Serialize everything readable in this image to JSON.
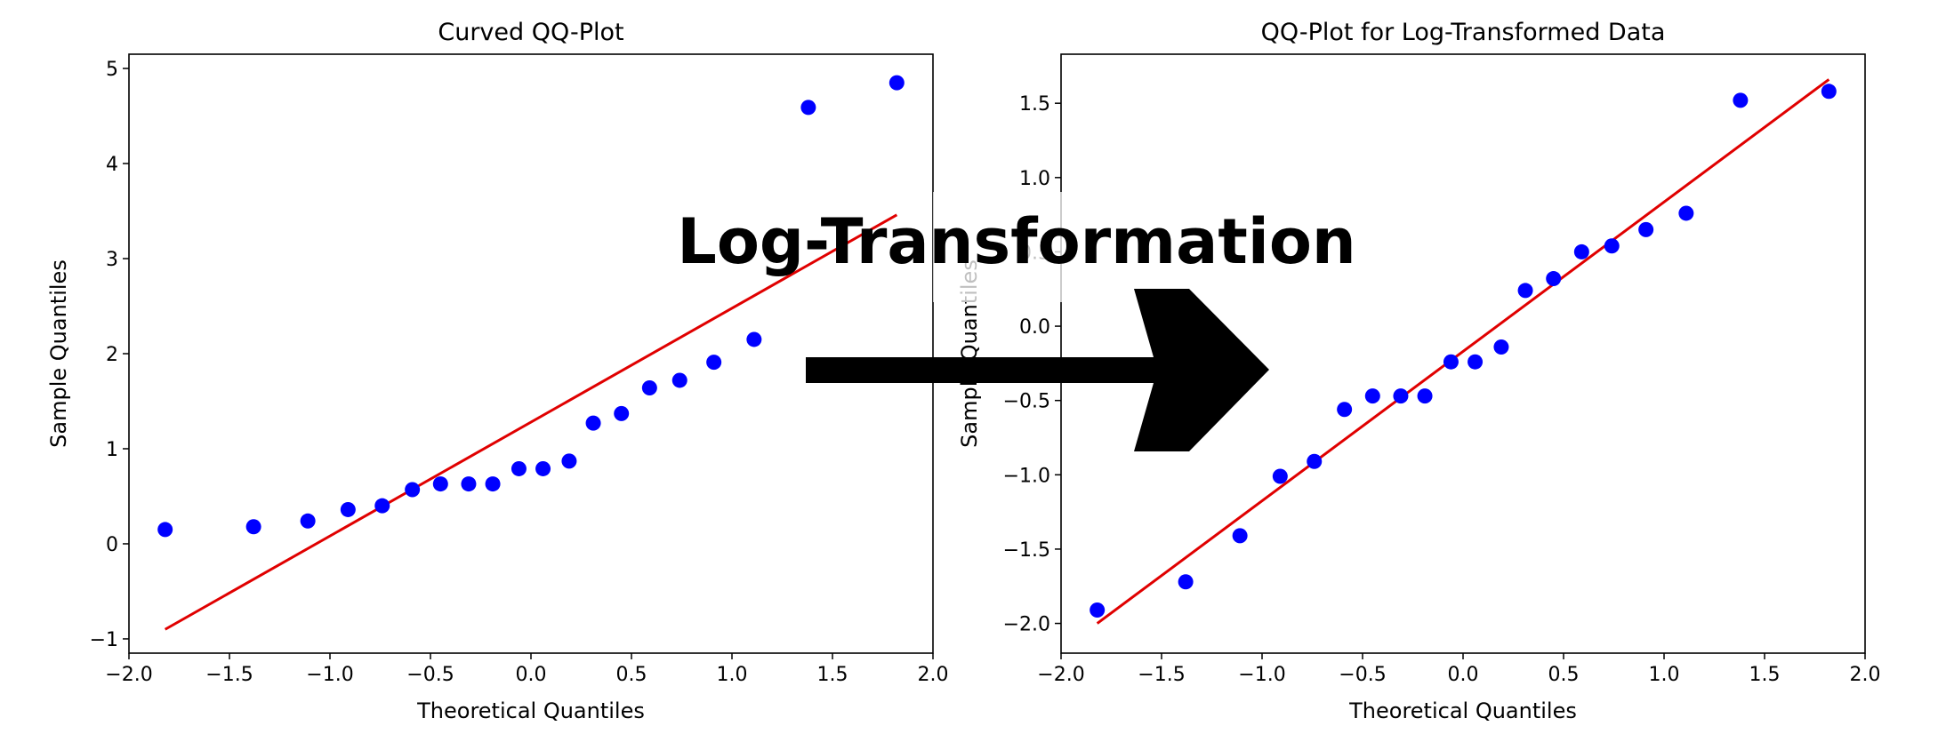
{
  "overlay": {
    "label": "Log-Transformation",
    "arrow": "right-arrow"
  },
  "colors": {
    "points": "#0000ff",
    "line": "#e00000",
    "text": "#000000"
  },
  "chart_data": [
    {
      "type": "scatter",
      "title": "Curved QQ-Plot",
      "xlabel": "Theoretical Quantiles",
      "ylabel": "Sample Quantiles",
      "xlim": [
        -2.0,
        2.0
      ],
      "ylim": [
        -1.15,
        5.15
      ],
      "xticks": [
        "−2.0",
        "−1.5",
        "−1.0",
        "−0.5",
        "0.0",
        "0.5",
        "1.0",
        "1.5",
        "2.0"
      ],
      "yticks": [
        "−1",
        "0",
        "1",
        "2",
        "3",
        "4",
        "5"
      ],
      "x": [
        -1.82,
        -1.38,
        -1.11,
        -0.91,
        -0.74,
        -0.59,
        -0.45,
        -0.31,
        -0.19,
        -0.06,
        0.06,
        0.19,
        0.31,
        0.45,
        0.59,
        0.74,
        0.91,
        1.11,
        1.38,
        1.82
      ],
      "y": [
        0.15,
        0.18,
        0.24,
        0.36,
        0.4,
        0.57,
        0.63,
        0.63,
        0.63,
        0.79,
        0.79,
        0.87,
        1.27,
        1.37,
        1.64,
        1.72,
        1.91,
        2.15,
        4.59,
        4.85
      ],
      "reference_line": {
        "x": [
          -1.82,
          1.82
        ],
        "y": [
          -0.9,
          3.46
        ]
      },
      "grid": false
    },
    {
      "type": "scatter",
      "title": "QQ-Plot for Log-Transformed Data",
      "xlabel": "Theoretical Quantiles",
      "ylabel": "Sample Quantiles",
      "xlim": [
        -2.0,
        2.0
      ],
      "ylim": [
        -2.2,
        1.83
      ],
      "xticks": [
        "−2.0",
        "−1.5",
        "−1.0",
        "−0.5",
        "0.0",
        "0.5",
        "1.0",
        "1.5",
        "2.0"
      ],
      "yticks": [
        "−2.0",
        "−1.5",
        "−1.0",
        "−0.5",
        "0.0",
        "0.5",
        "1.0",
        "1.5"
      ],
      "x": [
        -1.82,
        -1.38,
        -1.11,
        -0.91,
        -0.74,
        -0.59,
        -0.45,
        -0.31,
        -0.19,
        -0.06,
        0.06,
        0.19,
        0.31,
        0.45,
        0.59,
        0.74,
        0.91,
        1.11,
        1.38,
        1.82
      ],
      "y": [
        -1.91,
        -1.72,
        -1.41,
        -1.01,
        -0.91,
        -0.56,
        -0.47,
        -0.47,
        -0.47,
        -0.24,
        -0.24,
        -0.14,
        0.24,
        0.32,
        0.5,
        0.54,
        0.65,
        0.76,
        1.52,
        1.58
      ],
      "reference_line": {
        "x": [
          -1.82,
          1.82
        ],
        "y": [
          -2.0,
          1.66
        ]
      },
      "grid": false
    }
  ]
}
